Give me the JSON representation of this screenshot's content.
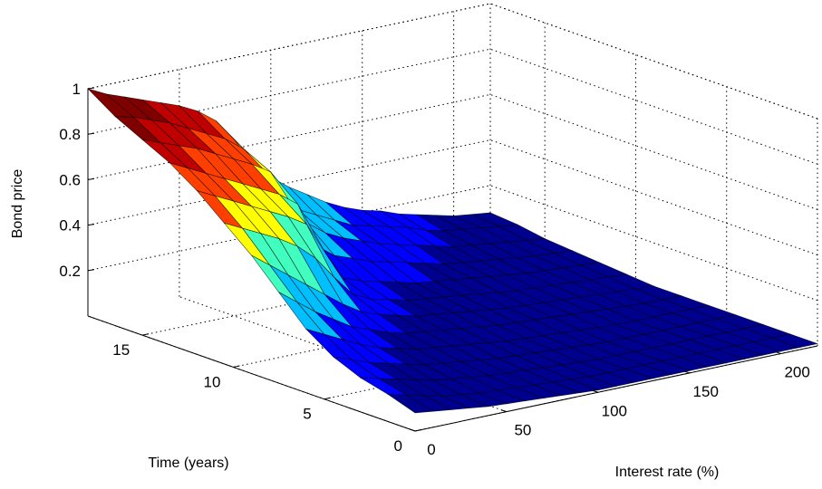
{
  "chart_data": {
    "type": "surface",
    "zlabel": "Bond price",
    "xlabel": "Interest rate (%)",
    "ylabel": "Time (years)",
    "x_ticks": [
      0,
      50,
      100,
      150,
      200
    ],
    "y_ticks": [
      0,
      5,
      10,
      15
    ],
    "z_ticks": [
      0.2,
      0.4,
      0.6,
      0.8,
      1
    ],
    "xlim": [
      0,
      220
    ],
    "ylim": [
      0,
      18
    ],
    "zlim": [
      0,
      1
    ],
    "grid": true,
    "colormap": "jet",
    "colors": [
      "#00008f",
      "#0000ff",
      "#00bfff",
      "#40ffbf",
      "#ffff00",
      "#ff3f00",
      "#bf0000",
      "#800000"
    ],
    "rates": [
      0,
      10,
      20,
      30,
      40,
      50,
      60,
      70,
      80,
      90,
      100,
      110,
      120,
      130,
      140,
      150,
      160,
      170,
      180,
      190,
      200,
      210,
      220
    ],
    "times": [
      0,
      1.5,
      3,
      4.5,
      6,
      7.5,
      9,
      10.5,
      12,
      13.5,
      15,
      16.5,
      18
    ],
    "prices": [
      [
        0.08,
        0.07,
        0.06,
        0.05,
        0.04,
        0.035,
        0.03,
        0.025,
        0.02,
        0.015,
        0.01,
        0.01,
        0.01,
        0.01,
        0.01,
        0.01,
        0.01,
        0.01,
        0.01,
        0.01,
        0.01,
        0.01,
        0.01
      ],
      [
        0.12,
        0.1,
        0.08,
        0.06,
        0.05,
        0.04,
        0.035,
        0.03,
        0.025,
        0.02,
        0.015,
        0.01,
        0.01,
        0.01,
        0.01,
        0.01,
        0.01,
        0.01,
        0.01,
        0.01,
        0.01,
        0.01,
        0.01
      ],
      [
        0.15,
        0.13,
        0.11,
        0.09,
        0.07,
        0.06,
        0.05,
        0.04,
        0.035,
        0.03,
        0.025,
        0.02,
        0.015,
        0.01,
        0.01,
        0.01,
        0.01,
        0.01,
        0.01,
        0.01,
        0.01,
        0.01,
        0.01
      ],
      [
        0.2,
        0.17,
        0.14,
        0.12,
        0.1,
        0.08,
        0.07,
        0.06,
        0.05,
        0.04,
        0.035,
        0.03,
        0.025,
        0.02,
        0.015,
        0.01,
        0.01,
        0.01,
        0.01,
        0.01,
        0.01,
        0.01,
        0.01
      ],
      [
        0.28,
        0.24,
        0.2,
        0.16,
        0.13,
        0.11,
        0.09,
        0.08,
        0.07,
        0.06,
        0.05,
        0.04,
        0.035,
        0.03,
        0.025,
        0.02,
        0.015,
        0.01,
        0.01,
        0.01,
        0.01,
        0.01,
        0.01
      ],
      [
        0.4,
        0.34,
        0.28,
        0.23,
        0.18,
        0.15,
        0.12,
        0.1,
        0.09,
        0.08,
        0.07,
        0.06,
        0.05,
        0.045,
        0.04,
        0.035,
        0.03,
        0.025,
        0.02,
        0.015,
        0.01,
        0.01,
        0.01
      ],
      [
        0.52,
        0.46,
        0.4,
        0.34,
        0.28,
        0.22,
        0.17,
        0.14,
        0.12,
        0.1,
        0.09,
        0.08,
        0.07,
        0.06,
        0.05,
        0.045,
        0.04,
        0.035,
        0.03,
        0.025,
        0.02,
        0.015,
        0.01
      ],
      [
        0.62,
        0.58,
        0.54,
        0.5,
        0.45,
        0.38,
        0.28,
        0.19,
        0.15,
        0.13,
        0.11,
        0.1,
        0.09,
        0.08,
        0.07,
        0.06,
        0.05,
        0.045,
        0.04,
        0.035,
        0.03,
        0.025,
        0.02
      ],
      [
        0.72,
        0.68,
        0.64,
        0.6,
        0.56,
        0.52,
        0.47,
        0.33,
        0.2,
        0.17,
        0.15,
        0.13,
        0.11,
        0.1,
        0.09,
        0.08,
        0.07,
        0.06,
        0.05,
        0.045,
        0.04,
        0.035,
        0.03
      ],
      [
        0.8,
        0.76,
        0.72,
        0.68,
        0.64,
        0.6,
        0.56,
        0.5,
        0.3,
        0.24,
        0.21,
        0.18,
        0.16,
        0.14,
        0.12,
        0.1,
        0.09,
        0.08,
        0.07,
        0.06,
        0.05,
        0.045,
        0.04
      ],
      [
        0.86,
        0.83,
        0.8,
        0.77,
        0.73,
        0.69,
        0.65,
        0.6,
        0.46,
        0.34,
        0.28,
        0.24,
        0.21,
        0.18,
        0.16,
        0.14,
        0.12,
        0.1,
        0.09,
        0.08,
        0.07,
        0.06,
        0.05
      ],
      [
        0.92,
        0.9,
        0.87,
        0.84,
        0.8,
        0.76,
        0.72,
        0.66,
        0.56,
        0.42,
        0.34,
        0.3,
        0.26,
        0.22,
        0.2,
        0.18,
        0.16,
        0.13,
        0.11,
        0.1,
        0.09,
        0.08,
        0.07
      ],
      [
        1.0,
        0.96,
        0.93,
        0.9,
        0.87,
        0.84,
        0.8,
        0.74,
        0.64,
        0.52,
        0.44,
        0.38,
        0.33,
        0.28,
        0.24,
        0.21,
        0.19,
        0.16,
        0.14,
        0.12,
        0.1,
        0.09,
        0.08
      ]
    ]
  }
}
